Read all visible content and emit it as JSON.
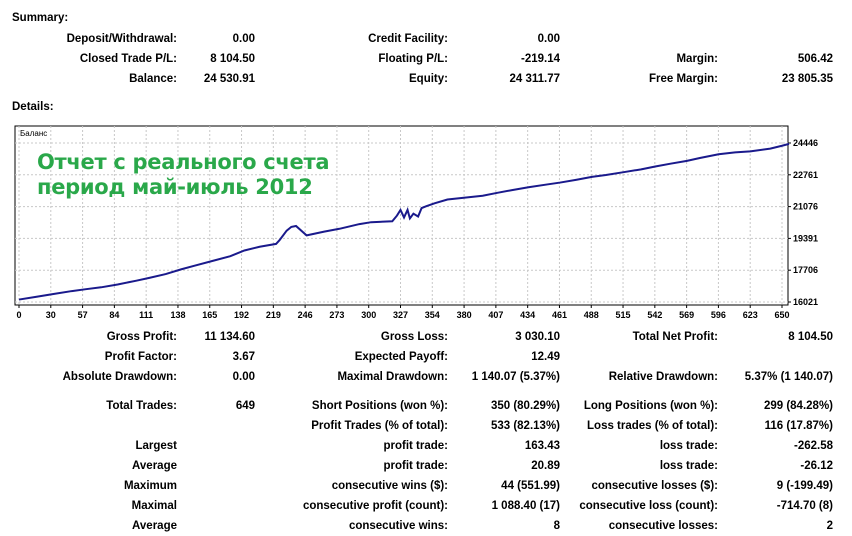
{
  "summary": {
    "title": "Summary:",
    "rows": [
      [
        [
          "Deposit/Withdrawal:",
          "0.00"
        ],
        [
          "Credit Facility:",
          "0.00"
        ],
        [
          "",
          ""
        ]
      ],
      [
        [
          "Closed Trade P/L:",
          "8 104.50"
        ],
        [
          "Floating P/L:",
          "-219.14"
        ],
        [
          "Margin:",
          "506.42"
        ]
      ],
      [
        [
          "Balance:",
          "24 530.91"
        ],
        [
          "Equity:",
          "24 311.77"
        ],
        [
          "Free Margin:",
          "23 805.35"
        ]
      ]
    ]
  },
  "details": {
    "title": "Details:",
    "rows": [
      [
        [
          "Gross Profit:",
          "11 134.60"
        ],
        [
          "Gross Loss:",
          "3 030.10"
        ],
        [
          "Total Net Profit:",
          "8 104.50"
        ]
      ],
      [
        [
          "Profit Factor:",
          "3.67"
        ],
        [
          "Expected Payoff:",
          "12.49"
        ],
        [
          "",
          ""
        ]
      ],
      [
        [
          "Absolute Drawdown:",
          "0.00"
        ],
        [
          "Maximal Drawdown:",
          "1 140.07 (5.37%)"
        ],
        [
          "Relative Drawdown:",
          "5.37% (1 140.07)"
        ]
      ],
      [
        [
          "Total Trades:",
          "649"
        ],
        [
          "Short Positions (won %):",
          "350 (80.29%)"
        ],
        [
          "Long Positions (won %):",
          "299 (84.28%)"
        ]
      ],
      [
        [
          "",
          ""
        ],
        [
          "Profit Trades (% of total):",
          "533 (82.13%)"
        ],
        [
          "Loss trades (% of total):",
          "116 (17.87%)"
        ]
      ],
      [
        [
          "Largest",
          ""
        ],
        [
          "profit trade:",
          "163.43"
        ],
        [
          "loss trade:",
          "-262.58"
        ]
      ],
      [
        [
          "Average",
          ""
        ],
        [
          "profit trade:",
          "20.89"
        ],
        [
          "loss trade:",
          "-26.12"
        ]
      ],
      [
        [
          "Maximum",
          ""
        ],
        [
          "consecutive wins ($):",
          "44 (551.99)"
        ],
        [
          "consecutive losses ($):",
          "9 (-199.49)"
        ]
      ],
      [
        [
          "Maximal",
          ""
        ],
        [
          "consecutive profit (count):",
          "1 088.40 (17)"
        ],
        [
          "consecutive loss (count):",
          "-714.70 (8)"
        ]
      ],
      [
        [
          "Average",
          ""
        ],
        [
          "consecutive wins:",
          "8"
        ],
        [
          "consecutive losses:",
          "2"
        ]
      ]
    ]
  },
  "overlay": {
    "line1": "Отчет с реального счета",
    "line2": "период май-июль 2012"
  },
  "chart_data": {
    "type": "line",
    "title": "Баланс",
    "line_color": "#1a1a8c",
    "overlay_color": "#2aa84a",
    "xlim": [
      0,
      660
    ],
    "ylim": [
      16021,
      24446
    ],
    "x_ticks": [
      "0",
      "30",
      "57",
      "84",
      "111",
      "138",
      "165",
      "192",
      "219",
      "246",
      "273",
      "300",
      "327",
      "354",
      "380",
      "407",
      "434",
      "461",
      "488",
      "515",
      "542",
      "569",
      "596",
      "623",
      "650"
    ],
    "y_ticks": [
      "24446",
      "22761",
      "21076",
      "19391",
      "17706",
      "16021"
    ],
    "grid": true,
    "series": [
      {
        "name": "Balance",
        "x": [
          0,
          15,
          30,
          45,
          57,
          70,
          84,
          100,
          111,
          125,
          138,
          150,
          165,
          180,
          192,
          205,
          219,
          222,
          228,
          232,
          236,
          245,
          260,
          273,
          290,
          300,
          318,
          322,
          325,
          328,
          331,
          333,
          336,
          340,
          343,
          347,
          354,
          365,
          380,
          395,
          407,
          420,
          434,
          450,
          461,
          475,
          488,
          500,
          515,
          530,
          542,
          555,
          569,
          580,
          596,
          610,
          623,
          640,
          650,
          656
        ],
        "y": [
          16150,
          16300,
          16450,
          16600,
          16700,
          16800,
          16950,
          17150,
          17300,
          17500,
          17750,
          17950,
          18200,
          18450,
          18750,
          18950,
          19100,
          19300,
          19800,
          20000,
          20050,
          19550,
          19750,
          19900,
          20150,
          20250,
          20300,
          20600,
          20900,
          20500,
          20900,
          20450,
          20700,
          20550,
          21000,
          21100,
          21250,
          21450,
          21550,
          21650,
          21800,
          21950,
          22100,
          22250,
          22350,
          22500,
          22650,
          22750,
          22900,
          23050,
          23200,
          23350,
          23500,
          23650,
          23850,
          23950,
          24000,
          24150,
          24300,
          24400
        ]
      }
    ]
  }
}
